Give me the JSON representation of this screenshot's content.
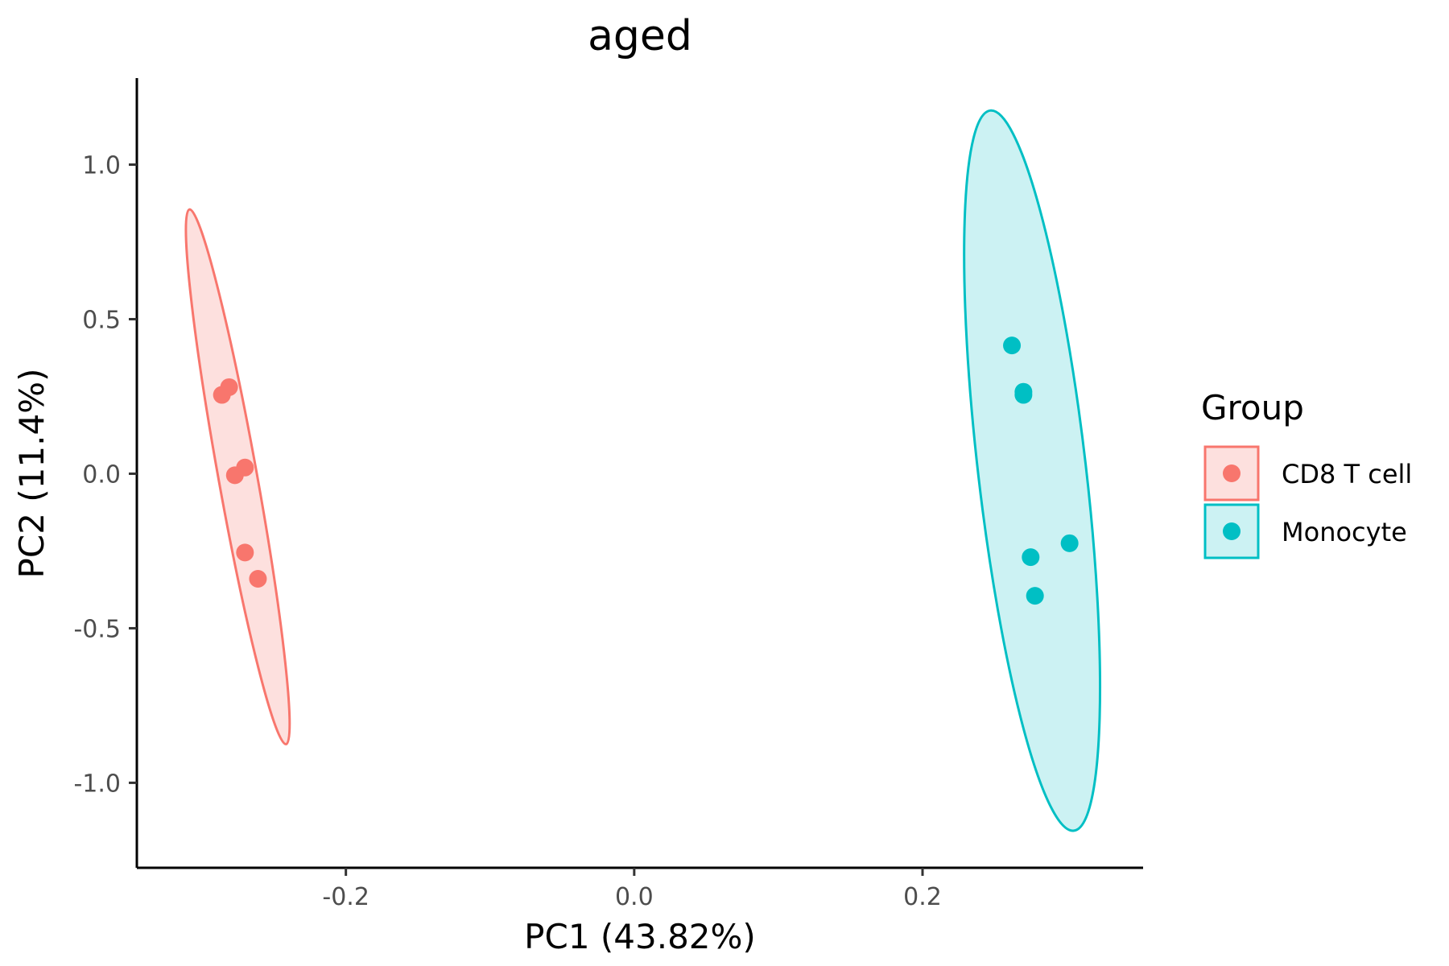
{
  "chart_data": {
    "type": "scatter",
    "title": "aged",
    "xlabel": "PC1 (43.82%)",
    "ylabel": "PC2 (11.4%)",
    "xlim": [
      -0.345,
      0.353
    ],
    "ylim": [
      -1.275,
      1.28
    ],
    "x_ticks": [
      -0.2,
      0.0,
      0.2
    ],
    "x_tick_labels": [
      "-0.2",
      "0.0",
      "0.2"
    ],
    "y_ticks": [
      -1.0,
      -0.5,
      0.0,
      0.5,
      1.0
    ],
    "y_tick_labels": [
      "-1.0",
      "-0.5",
      "0.0",
      "0.5",
      "1.0"
    ],
    "grid": false,
    "legend": {
      "title": "Group",
      "position": "right"
    },
    "series": [
      {
        "name": "CD8 T cell",
        "color": "#F8766D",
        "fill": "#FDE0DE",
        "points": [
          {
            "x": -0.286,
            "y": 0.255
          },
          {
            "x": -0.281,
            "y": 0.28
          },
          {
            "x": -0.277,
            "y": -0.005
          },
          {
            "x": -0.27,
            "y": 0.02
          },
          {
            "x": -0.27,
            "y": -0.255
          },
          {
            "x": -0.261,
            "y": -0.34
          }
        ],
        "ellipse": {
          "center": {
            "x": -0.275,
            "y": -0.01
          },
          "extremes": {
            "top": {
              "x": -0.308,
              "y": 0.855
            },
            "bottom": {
              "x": -0.241,
              "y": -0.875
            }
          }
        }
      },
      {
        "name": "Monocyte",
        "color": "#00BFC4",
        "fill": "#CCF2F3",
        "points": [
          {
            "x": 0.262,
            "y": 0.415
          },
          {
            "x": 0.27,
            "y": 0.265
          },
          {
            "x": 0.27,
            "y": 0.255
          },
          {
            "x": 0.275,
            "y": -0.27
          },
          {
            "x": 0.278,
            "y": -0.395
          },
          {
            "x": 0.302,
            "y": -0.225
          }
        ],
        "ellipse": {
          "center": {
            "x": 0.276,
            "y": 0.01
          },
          "extremes": {
            "top": {
              "x": 0.247,
              "y": 1.175
            },
            "bottom": {
              "x": 0.305,
              "y": -1.155
            }
          }
        }
      }
    ]
  }
}
